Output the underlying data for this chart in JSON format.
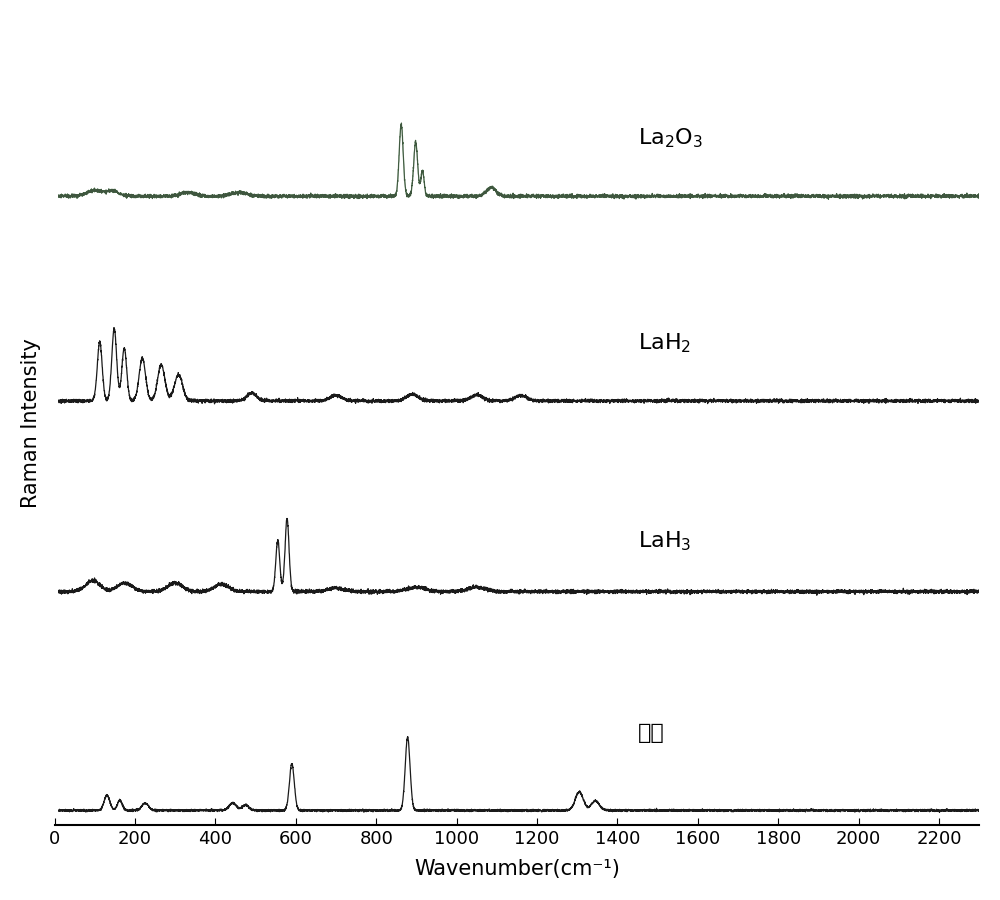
{
  "xlabel": "Wavenumber(cm⁻¹)",
  "ylabel": "Raman Intensity",
  "xlim": [
    0,
    2300
  ],
  "xticks": [
    0,
    200,
    400,
    600,
    800,
    1000,
    1200,
    1400,
    1600,
    1800,
    2000,
    2200
  ],
  "background_color": "#ffffff",
  "line_color_main": "#1a1a1a",
  "labels": [
    "La$_2$O$_3$",
    "LaH$_2$",
    "LaH$_3$",
    "样品"
  ],
  "offsets": [
    4.5,
    3.0,
    1.6,
    0.0
  ],
  "noise_seed": 42,
  "figsize": [
    10,
    9
  ],
  "dpi": 100,
  "label_fontsize": 16,
  "tick_fontsize": 13,
  "ylabel_fontsize": 15,
  "xlabel_fontsize": 15
}
